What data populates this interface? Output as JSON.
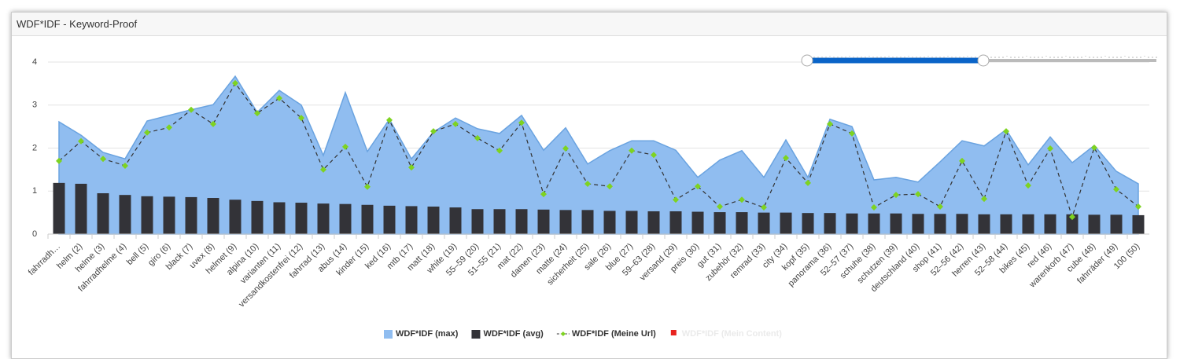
{
  "panel": {
    "title": "WDF*IDF - Keyword-Proof"
  },
  "chart_data": {
    "type": "combo",
    "categories": [
      "fahrradh…",
      "helm (2)",
      "helme (3)",
      "fahrradhelme (4)",
      "bell (5)",
      "giro (6)",
      "black (7)",
      "uvex (8)",
      "helmet (9)",
      "alpina (10)",
      "varianten (11)",
      "versandkostenfrei (12)",
      "fahrrad (13)",
      "abus (14)",
      "kinder (15)",
      "ked (16)",
      "mtb (17)",
      "matt (18)",
      "white (19)",
      "55–59 (20)",
      "51–55 (21)",
      "mat (22)",
      "damen (23)",
      "matte (24)",
      "sicherheit (25)",
      "sale (26)",
      "blue (27)",
      "59–63 (28)",
      "versand (29)",
      "preis (30)",
      "gut (31)",
      "zubehör (32)",
      "remrad (33)",
      "city (34)",
      "kopf (35)",
      "panorama (36)",
      "52–57 (37)",
      "schuhe (38)",
      "schutzen (39)",
      "deutschland (40)",
      "shop (41)",
      "52–56 (42)",
      "herren (43)",
      "52–58 (44)",
      "bikes (45)",
      "red (46)",
      "warenkorb (47)",
      "cube (48)",
      "fahrräder (49)",
      "100 (50)"
    ],
    "series": [
      {
        "name": "WDF*IDF (max)",
        "kind": "area",
        "color": "#90bdf0",
        "values": [
          2.61,
          2.3,
          1.9,
          1.75,
          2.63,
          2.76,
          2.89,
          3.01,
          3.67,
          2.83,
          3.34,
          3.0,
          1.83,
          3.29,
          1.92,
          2.67,
          1.75,
          2.37,
          2.7,
          2.45,
          2.34,
          2.76,
          1.95,
          2.47,
          1.63,
          1.94,
          2.17,
          2.17,
          1.95,
          1.32,
          1.72,
          1.94,
          1.32,
          2.19,
          1.32,
          2.67,
          2.5,
          1.26,
          1.32,
          1.21,
          1.68,
          2.17,
          2.05,
          2.43,
          1.61,
          2.26,
          1.66,
          2.06,
          1.46,
          1.17
        ]
      },
      {
        "name": "WDF*IDF (avg)",
        "kind": "bar",
        "color": "#333338",
        "values": [
          1.19,
          1.17,
          0.95,
          0.91,
          0.88,
          0.87,
          0.86,
          0.84,
          0.8,
          0.77,
          0.74,
          0.73,
          0.71,
          0.7,
          0.68,
          0.66,
          0.65,
          0.64,
          0.62,
          0.58,
          0.58,
          0.58,
          0.57,
          0.56,
          0.56,
          0.54,
          0.54,
          0.53,
          0.53,
          0.52,
          0.51,
          0.51,
          0.5,
          0.5,
          0.49,
          0.49,
          0.48,
          0.48,
          0.48,
          0.47,
          0.47,
          0.47,
          0.46,
          0.46,
          0.46,
          0.46,
          0.46,
          0.45,
          0.45,
          0.44
        ]
      },
      {
        "name": "WDF*IDF (Meine Url)",
        "kind": "line",
        "color": "#7ed321",
        "values": [
          1.7,
          2.16,
          1.75,
          1.59,
          2.36,
          2.48,
          2.89,
          2.56,
          3.51,
          2.81,
          3.16,
          2.7,
          1.5,
          2.03,
          1.1,
          2.65,
          1.55,
          2.39,
          2.56,
          2.23,
          1.94,
          2.59,
          0.93,
          1.99,
          1.17,
          1.11,
          1.94,
          1.84,
          0.8,
          1.11,
          0.64,
          0.8,
          0.62,
          1.77,
          1.19,
          2.56,
          2.34,
          0.62,
          0.91,
          0.93,
          0.64,
          1.7,
          0.82,
          2.39,
          1.13,
          1.99,
          0.4,
          2.01,
          1.04,
          0.64
        ]
      },
      {
        "name": "WDF*IDF (Mein Content)",
        "kind": "line",
        "color": "#e8231f",
        "hidden": true,
        "values": [
          null,
          null,
          null,
          null,
          null,
          null,
          null,
          null,
          null,
          null,
          null,
          null,
          null,
          null,
          null,
          null,
          null,
          null,
          null,
          null,
          null,
          null,
          null,
          null,
          null,
          null,
          null,
          null,
          null,
          null,
          null,
          null,
          null,
          null,
          null,
          null,
          null,
          null,
          null,
          null,
          null,
          null,
          null,
          null,
          null,
          null,
          null,
          null,
          null,
          null
        ]
      }
    ],
    "ylim": [
      0,
      4
    ],
    "yticks": [
      0,
      1,
      2,
      3,
      4
    ],
    "grid": true
  }
}
